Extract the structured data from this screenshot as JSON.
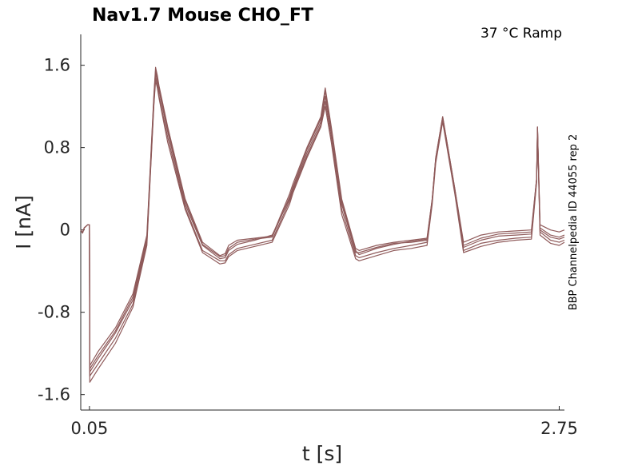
{
  "chart_data": {
    "type": "line",
    "title": "Nav1.7  Mouse  CHO_FT",
    "annotation": "37 °C  Ramp",
    "side_label": "BBP Channelpedia ID 44055 rep 2",
    "xlabel": "t [s]",
    "ylabel": "I [nA]",
    "xlim": [
      0.0,
      2.78
    ],
    "ylim": [
      -1.75,
      1.9
    ],
    "x_ticks": [
      0.05,
      2.75
    ],
    "x_tick_labels": [
      "0.05",
      "2.75"
    ],
    "y_ticks": [
      1.6,
      0.8,
      0,
      -0.8,
      -1.6
    ],
    "y_tick_labels": [
      "1.6",
      "0.8",
      "0",
      "-0.8",
      "-1.6"
    ],
    "grid": false,
    "line_color": "#8f5a5a",
    "series": [
      {
        "x": [
          0.0,
          0.01,
          0.02,
          0.04,
          0.049,
          0.05,
          0.052,
          0.1,
          0.2,
          0.3,
          0.38,
          0.42,
          0.43,
          0.44,
          0.45,
          0.5,
          0.6,
          0.7,
          0.8,
          0.83,
          0.85,
          0.9,
          1.0,
          1.1,
          1.2,
          1.22,
          1.3,
          1.38,
          1.405,
          1.44,
          1.5,
          1.58,
          1.6,
          1.7,
          1.8,
          1.9,
          1.99,
          2.02,
          2.04,
          2.08,
          2.15,
          2.2,
          2.3,
          2.4,
          2.5,
          2.59,
          2.62,
          2.625,
          2.64,
          2.7,
          2.75,
          2.78
        ],
        "values": [
          0.0,
          -0.03,
          0.02,
          0.05,
          0.05,
          0.04,
          -1.32,
          -1.18,
          -0.95,
          -0.62,
          -0.05,
          1.3,
          1.58,
          1.5,
          1.4,
          1.0,
          0.3,
          -0.12,
          -0.25,
          -0.23,
          -0.15,
          -0.1,
          -0.08,
          -0.06,
          0.35,
          0.45,
          0.8,
          1.1,
          1.38,
          1.0,
          0.3,
          -0.18,
          -0.2,
          -0.15,
          -0.12,
          -0.1,
          -0.08,
          0.3,
          0.7,
          1.1,
          0.4,
          -0.12,
          -0.05,
          -0.02,
          -0.01,
          0.0,
          0.5,
          1.0,
          0.05,
          0.0,
          -0.02,
          0.0
        ]
      },
      {
        "x": [
          0.0,
          0.01,
          0.02,
          0.04,
          0.049,
          0.05,
          0.052,
          0.1,
          0.2,
          0.3,
          0.38,
          0.42,
          0.43,
          0.44,
          0.45,
          0.5,
          0.6,
          0.7,
          0.8,
          0.83,
          0.85,
          0.9,
          1.0,
          1.1,
          1.2,
          1.22,
          1.3,
          1.38,
          1.405,
          1.44,
          1.5,
          1.58,
          1.6,
          1.7,
          1.8,
          1.9,
          1.99,
          2.02,
          2.04,
          2.08,
          2.15,
          2.2,
          2.3,
          2.4,
          2.5,
          2.59,
          2.62,
          2.625,
          2.64,
          2.7,
          2.75,
          2.78
        ],
        "values": [
          0.0,
          -0.03,
          0.02,
          0.05,
          0.05,
          0.04,
          -1.38,
          -1.25,
          -1.0,
          -0.68,
          -0.1,
          1.25,
          1.52,
          1.45,
          1.35,
          0.95,
          0.25,
          -0.15,
          -0.28,
          -0.27,
          -0.2,
          -0.14,
          -0.1,
          -0.05,
          0.3,
          0.4,
          0.75,
          1.05,
          1.3,
          0.95,
          0.25,
          -0.22,
          -0.22,
          -0.17,
          -0.13,
          -0.12,
          -0.1,
          0.3,
          0.7,
          1.1,
          0.4,
          -0.15,
          -0.08,
          -0.04,
          -0.03,
          -0.02,
          0.5,
          1.0,
          0.02,
          -0.05,
          -0.07,
          -0.05
        ]
      },
      {
        "x": [
          0.0,
          0.01,
          0.02,
          0.04,
          0.049,
          0.05,
          0.052,
          0.1,
          0.2,
          0.3,
          0.38,
          0.42,
          0.43,
          0.44,
          0.45,
          0.5,
          0.6,
          0.7,
          0.8,
          0.83,
          0.85,
          0.9,
          1.0,
          1.1,
          1.2,
          1.22,
          1.3,
          1.38,
          1.405,
          1.44,
          1.5,
          1.58,
          1.6,
          1.7,
          1.8,
          1.9,
          1.99,
          2.02,
          2.04,
          2.08,
          2.15,
          2.2,
          2.3,
          2.4,
          2.5,
          2.59,
          2.62,
          2.625,
          2.64,
          2.7,
          2.75,
          2.78
        ],
        "values": [
          0.0,
          -0.03,
          0.02,
          0.05,
          0.05,
          0.04,
          -1.42,
          -1.3,
          -1.05,
          -0.72,
          -0.12,
          1.22,
          1.48,
          1.42,
          1.3,
          0.9,
          0.22,
          -0.2,
          -0.3,
          -0.3,
          -0.24,
          -0.18,
          -0.14,
          -0.1,
          0.28,
          0.38,
          0.72,
          1.02,
          1.25,
          0.9,
          0.2,
          -0.25,
          -0.27,
          -0.22,
          -0.18,
          -0.15,
          -0.12,
          0.28,
          0.68,
          1.08,
          0.38,
          -0.2,
          -0.13,
          -0.1,
          -0.08,
          -0.07,
          0.48,
          0.98,
          -0.02,
          -0.1,
          -0.12,
          -0.1
        ]
      },
      {
        "x": [
          0.0,
          0.01,
          0.02,
          0.04,
          0.049,
          0.05,
          0.052,
          0.1,
          0.2,
          0.3,
          0.38,
          0.42,
          0.43,
          0.44,
          0.45,
          0.5,
          0.6,
          0.7,
          0.8,
          0.83,
          0.85,
          0.9,
          1.0,
          1.1,
          1.2,
          1.22,
          1.3,
          1.38,
          1.405,
          1.44,
          1.5,
          1.58,
          1.6,
          1.7,
          1.8,
          1.9,
          1.99,
          2.02,
          2.04,
          2.08,
          2.15,
          2.2,
          2.3,
          2.4,
          2.5,
          2.59,
          2.62,
          2.625,
          2.64,
          2.7,
          2.75,
          2.78
        ],
        "values": [
          0.0,
          -0.03,
          0.02,
          0.05,
          0.05,
          0.04,
          -1.48,
          -1.35,
          -1.1,
          -0.75,
          -0.15,
          1.2,
          1.45,
          1.38,
          1.28,
          0.85,
          0.2,
          -0.22,
          -0.33,
          -0.32,
          -0.26,
          -0.2,
          -0.16,
          -0.12,
          0.25,
          0.36,
          0.7,
          1.0,
          1.2,
          0.85,
          0.15,
          -0.28,
          -0.3,
          -0.25,
          -0.2,
          -0.18,
          -0.15,
          0.25,
          0.65,
          1.05,
          0.35,
          -0.22,
          -0.16,
          -0.12,
          -0.1,
          -0.09,
          0.46,
          0.95,
          -0.05,
          -0.13,
          -0.15,
          -0.12
        ]
      },
      {
        "x": [
          0.0,
          0.01,
          0.02,
          0.04,
          0.049,
          0.05,
          0.052,
          0.1,
          0.2,
          0.3,
          0.38,
          0.42,
          0.43,
          0.44,
          0.45,
          0.5,
          0.6,
          0.7,
          0.8,
          0.83,
          0.85,
          0.9,
          1.0,
          1.1,
          1.2,
          1.22,
          1.3,
          1.38,
          1.405,
          1.44,
          1.5,
          1.58,
          1.6,
          1.7,
          1.8,
          1.9,
          1.99,
          2.02,
          2.04,
          2.08,
          2.15,
          2.2,
          2.3,
          2.4,
          2.5,
          2.59,
          2.62,
          2.625,
          2.64,
          2.7,
          2.75,
          2.78
        ],
        "values": [
          0.0,
          -0.03,
          0.02,
          0.05,
          0.05,
          0.04,
          -1.35,
          -1.22,
          -0.98,
          -0.65,
          -0.08,
          1.28,
          1.55,
          1.48,
          1.38,
          0.98,
          0.28,
          -0.14,
          -0.26,
          -0.25,
          -0.18,
          -0.12,
          -0.09,
          -0.07,
          0.32,
          0.42,
          0.78,
          1.08,
          1.35,
          0.98,
          0.28,
          -0.2,
          -0.24,
          -0.18,
          -0.14,
          -0.11,
          -0.09,
          0.29,
          0.69,
          1.09,
          0.39,
          -0.17,
          -0.1,
          -0.06,
          -0.05,
          -0.04,
          0.49,
          0.99,
          0.0,
          -0.07,
          -0.09,
          -0.07
        ]
      }
    ]
  }
}
